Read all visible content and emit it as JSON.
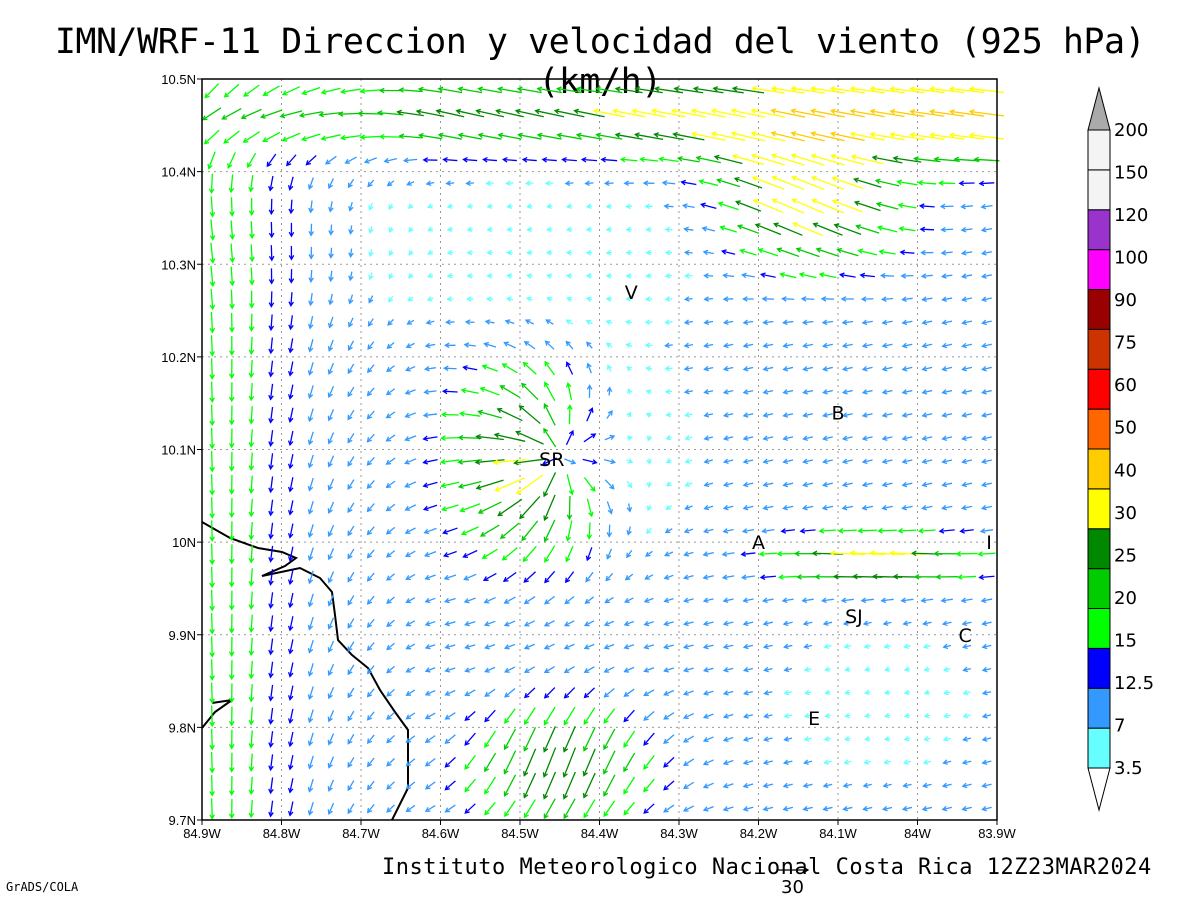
{
  "chart_data": {
    "type": "vector_field",
    "title": "IMN/WRF-11 Direccion y velocidad del viento (925 hPa)(km/h)",
    "footer": "Instituto Meteorologico Nacional Costa Rica 12Z23MAR2024",
    "software": "GrADS/COLA",
    "reference_vector": {
      "label": "30",
      "value": 30
    },
    "lon_range": [
      -84.9,
      -83.9
    ],
    "lat_range": [
      9.7,
      10.5
    ],
    "x_tick_labels": [
      "84.9W",
      "84.8W",
      "84.7W",
      "84.6W",
      "84.5W",
      "84.4W",
      "84.3W",
      "84.2W",
      "84.1W",
      "84W",
      "83.9W"
    ],
    "y_tick_labels": [
      "9.7N",
      "9.8N",
      "9.9N",
      "10N",
      "10.1N",
      "10.2N",
      "10.3N",
      "10.4N",
      "10.5N"
    ],
    "grid": true,
    "colorbar": {
      "labels": [
        "3.5",
        "7",
        "12.5",
        "15",
        "20",
        "25",
        "30",
        "40",
        "50",
        "60",
        "75",
        "90",
        "100",
        "120",
        "150",
        "200"
      ],
      "colors": [
        "#66ffff",
        "#3399ff",
        "#0000ff",
        "#00ff00",
        "#00cc00",
        "#008800",
        "#ffff00",
        "#ffcc00",
        "#ff6600",
        "#ff0000",
        "#cc3300",
        "#990000",
        "#ff00ff",
        "#9933cc",
        "#f4f4f4",
        "#aaaaaa"
      ]
    },
    "places": [
      {
        "label": "V",
        "lon": -84.36,
        "lat": 10.27
      },
      {
        "label": "B",
        "lon": -84.1,
        "lat": 10.14
      },
      {
        "label": "SR",
        "lon": -84.46,
        "lat": 10.09
      },
      {
        "label": "A",
        "lon": -84.2,
        "lat": 10.0
      },
      {
        "label": "I",
        "lon": -83.91,
        "lat": 10.0
      },
      {
        "label": "SJ",
        "lon": -84.08,
        "lat": 9.92
      },
      {
        "label": "C",
        "lon": -83.94,
        "lat": 9.9
      },
      {
        "label": "E",
        "lon": -84.13,
        "lat": 9.81
      }
    ]
  }
}
